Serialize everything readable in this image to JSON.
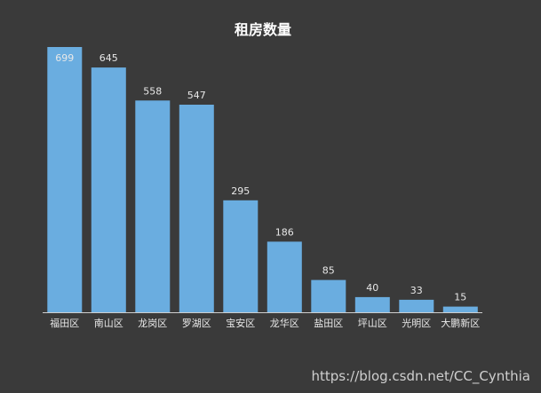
{
  "chart_data": {
    "type": "bar",
    "title": "租房数量",
    "categories": [
      "福田区",
      "南山区",
      "龙岗区",
      "罗湖区",
      "宝安区",
      "龙华区",
      "盐田区",
      "坪山区",
      "光明区",
      "大鹏新区"
    ],
    "values": [
      699,
      645,
      558,
      547,
      295,
      186,
      85,
      40,
      33,
      15
    ],
    "ylim": [
      0,
      699
    ],
    "bar_color": "#6aade0",
    "axis_color": "#cfcfcf",
    "grid": false,
    "legend": false
  },
  "watermark": "https://blog.csdn.net/CC_Cynthia"
}
